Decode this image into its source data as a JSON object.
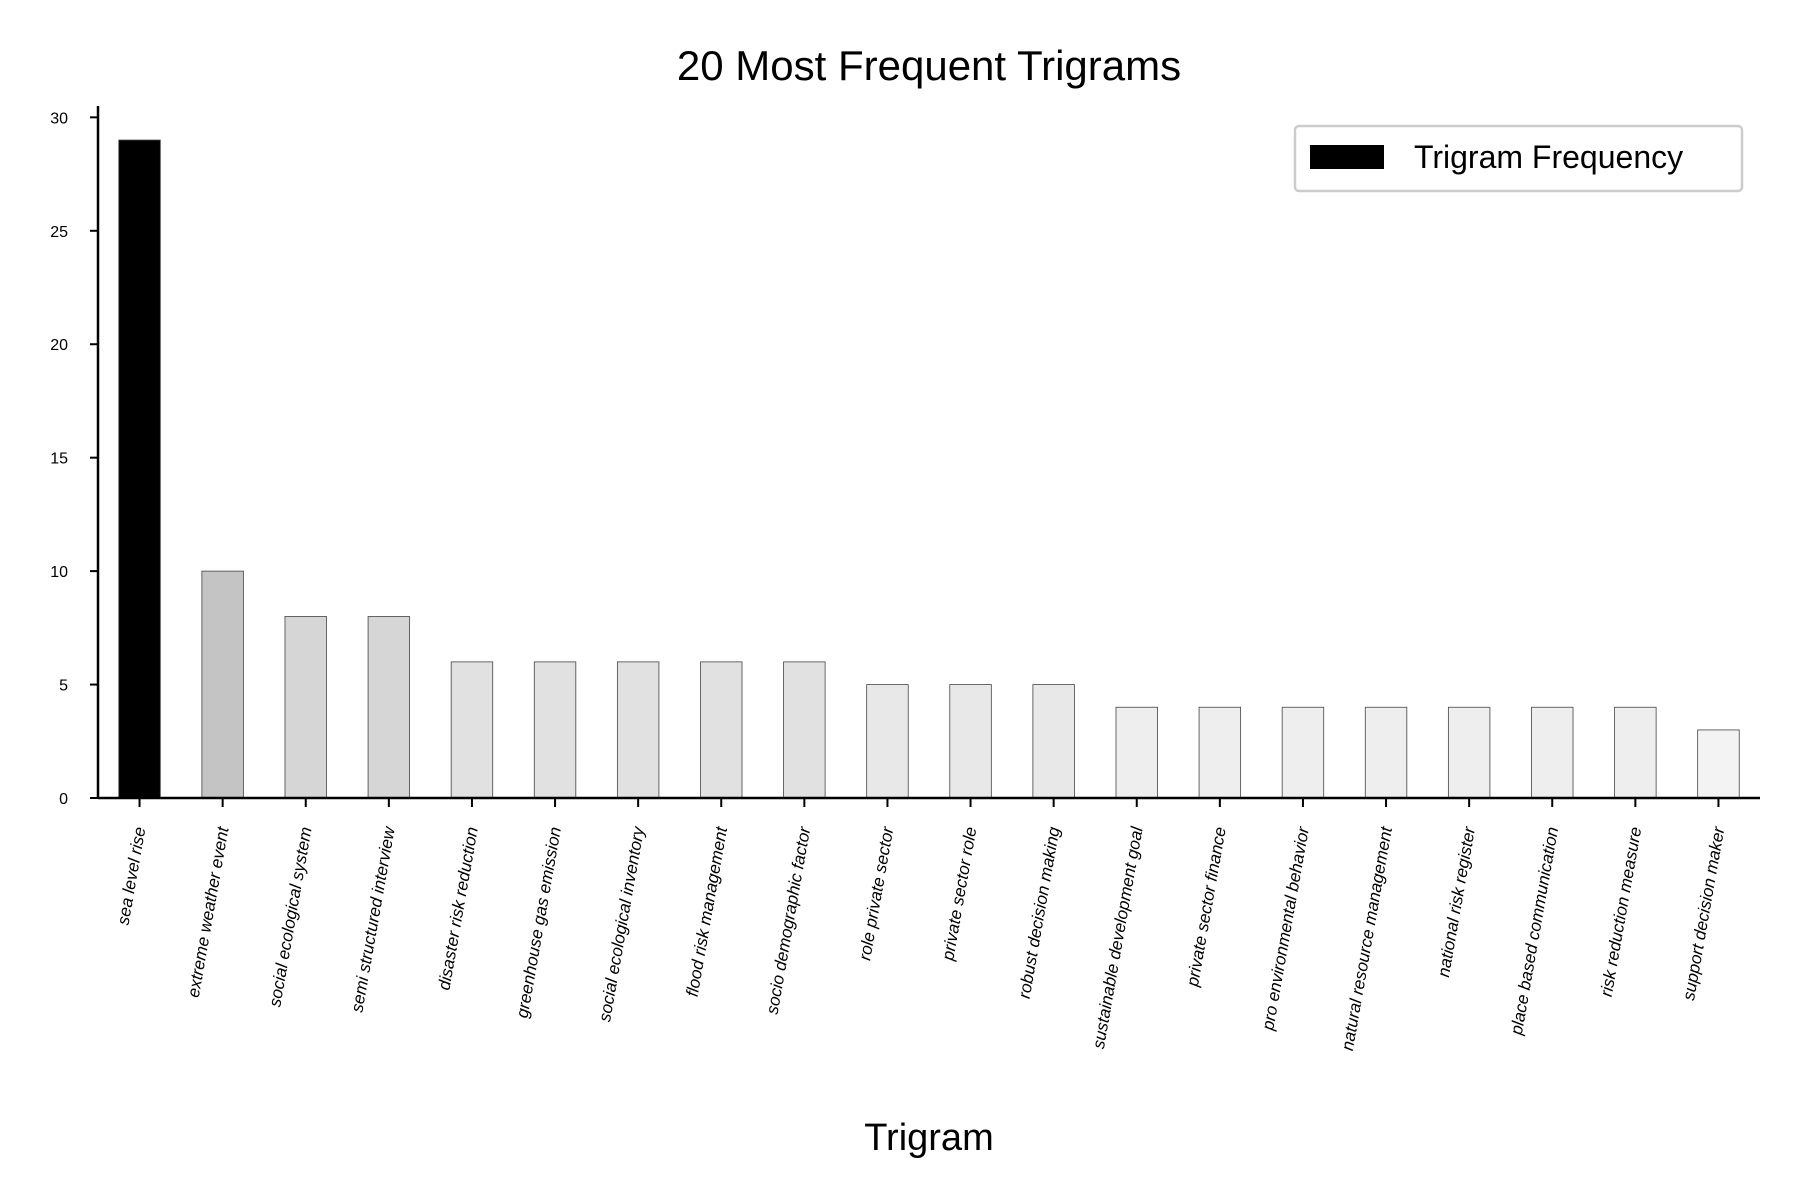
{
  "chart_data": {
    "type": "bar",
    "title": "20 Most Frequent Trigrams",
    "xlabel": "Trigram",
    "ylabel": "",
    "ylim": [
      0,
      30.5
    ],
    "yticks": [
      0,
      5,
      10,
      15,
      20,
      25,
      30
    ],
    "grid": false,
    "legend": {
      "placement": "top-right",
      "entries": [
        "Trigram Frequency"
      ]
    },
    "categories": [
      "sea level rise",
      "extreme weather event",
      "social ecological system",
      "semi structured interview",
      "disaster risk reduction",
      "greenhouse gas emission",
      "social ecological inventory",
      "flood risk management",
      "socio demographic factor",
      "role private sector",
      "private sector role",
      "robust decision making",
      "sustainable development goal",
      "private sector finance",
      "pro environmental behavior",
      "natural resource management",
      "national risk register",
      "place based communication",
      "risk reduction measure",
      "support decision maker"
    ],
    "series": [
      {
        "name": "Trigram Frequency",
        "values": [
          29,
          10,
          8,
          8,
          6,
          6,
          6,
          6,
          6,
          5,
          5,
          5,
          4,
          4,
          4,
          4,
          4,
          4,
          4,
          3
        ]
      }
    ],
    "colors": {
      "legend_swatch": "#000000",
      "bar_fills": [
        "#000000",
        "#c4c4c4",
        "#d6d6d6",
        "#d6d6d6",
        "#e1e1e1",
        "#e1e1e1",
        "#e1e1e1",
        "#e1e1e1",
        "#e1e1e1",
        "#e8e8e8",
        "#e8e8e8",
        "#e8e8e8",
        "#eeeeee",
        "#eeeeee",
        "#eeeeee",
        "#eeeeee",
        "#eeeeee",
        "#eeeeee",
        "#eeeeee",
        "#f3f3f3"
      ],
      "bar_edge": "#444444",
      "axis": "#000000",
      "legend_border": "#cccccc"
    }
  }
}
